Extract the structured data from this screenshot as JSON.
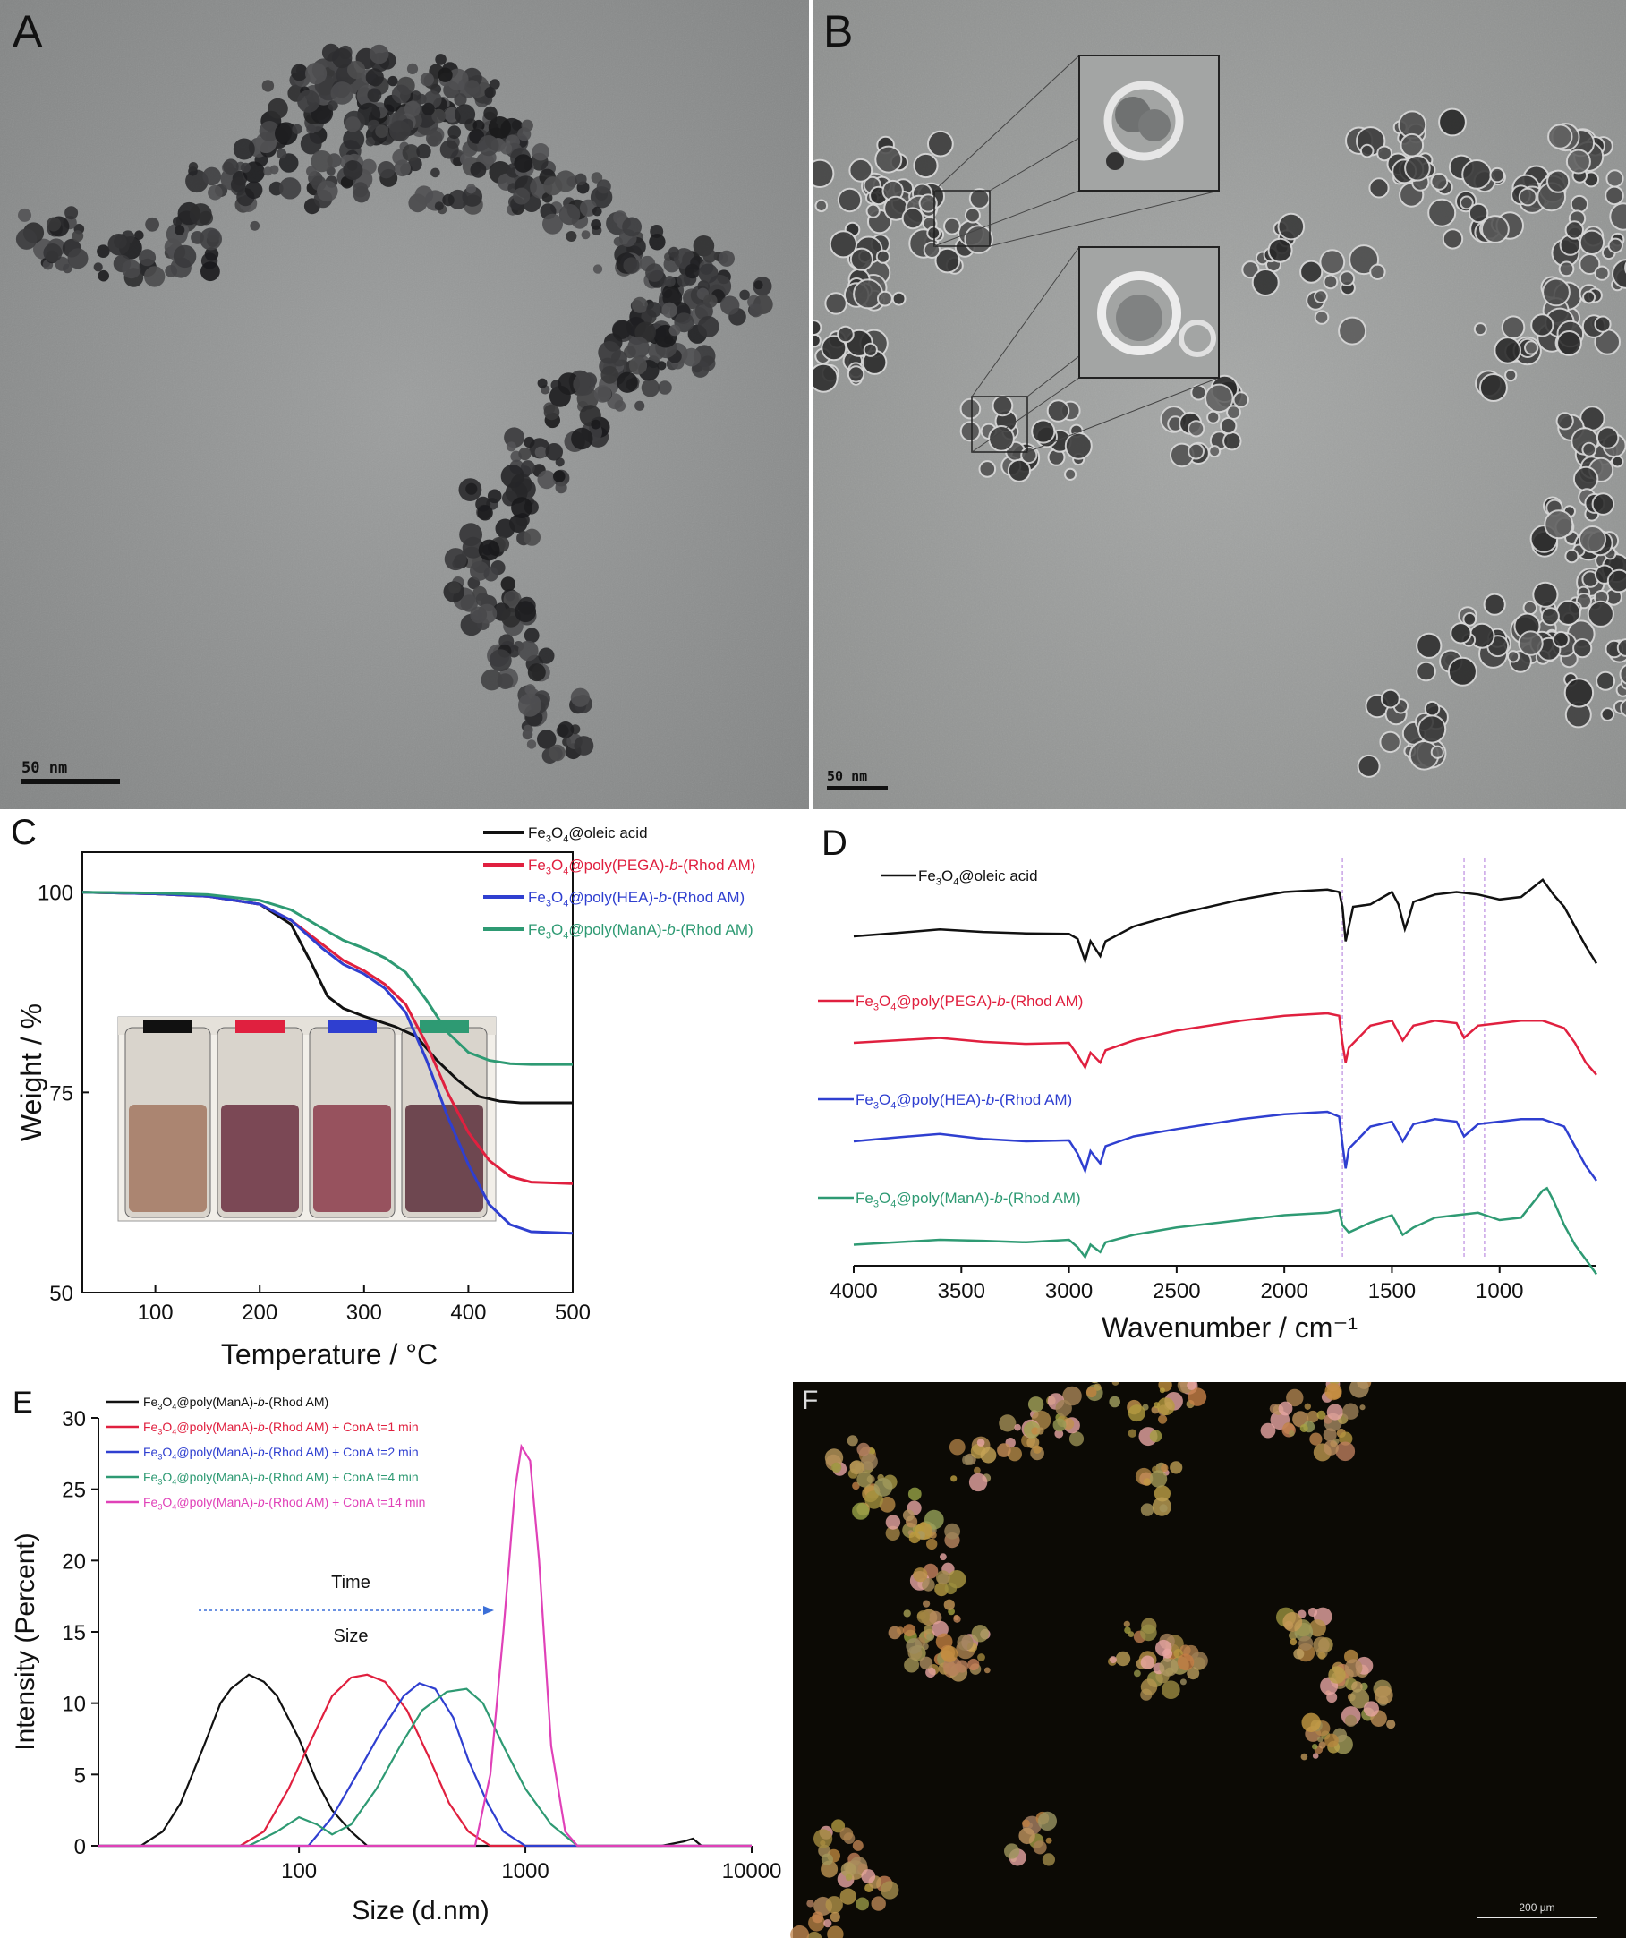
{
  "panels": {
    "a": {
      "label": "A",
      "scalebar": "50 nm"
    },
    "b": {
      "label": "B",
      "scalebar": "50 nm"
    },
    "c": {
      "label": "C"
    },
    "d": {
      "label": "D"
    },
    "e": {
      "label": "E"
    },
    "f": {
      "label": "F",
      "scalebar": "200 µm"
    }
  },
  "colors": {
    "black": "#111111",
    "red": "#e0203f",
    "blue": "#2f3fd0",
    "green": "#2e9a73",
    "magenta": "#e041b8"
  },
  "chart_data": [
    {
      "id": "C",
      "type": "line",
      "xlabel": "Temperature / °C",
      "ylabel": "Weight / %",
      "xlim": [
        30,
        500
      ],
      "ylim": [
        50,
        105
      ],
      "xticks": [
        100,
        200,
        300,
        400,
        500
      ],
      "yticks": [
        50,
        75,
        100
      ],
      "legend_position": "top-right",
      "series": [
        {
          "name": "Fe3O4@oleic acid",
          "color": "#111111",
          "x": [
            30,
            100,
            150,
            200,
            230,
            250,
            265,
            280,
            300,
            330,
            350,
            370,
            390,
            410,
            430,
            450,
            500
          ],
          "y": [
            100,
            99.8,
            99.5,
            98.5,
            96,
            91,
            87,
            85.5,
            84.5,
            83.2,
            82,
            79,
            76.5,
            74.5,
            73.9,
            73.7,
            73.7
          ]
        },
        {
          "name": "Fe3O4@poly(PEGA)-b-(Rhod AM)",
          "color": "#e0203f",
          "x": [
            30,
            100,
            150,
            200,
            230,
            260,
            280,
            300,
            320,
            340,
            360,
            380,
            400,
            420,
            440,
            460,
            500
          ],
          "y": [
            100,
            99.8,
            99.5,
            98.5,
            96.5,
            93.5,
            91.5,
            90.2,
            88.5,
            86,
            81,
            75,
            70,
            66.5,
            64.5,
            63.8,
            63.6
          ]
        },
        {
          "name": "Fe3O4@poly(HEA)-b-(Rhod AM)",
          "color": "#2f3fd0",
          "x": [
            30,
            100,
            150,
            200,
            230,
            260,
            280,
            300,
            320,
            340,
            360,
            380,
            400,
            420,
            440,
            460,
            500
          ],
          "y": [
            100,
            99.8,
            99.5,
            98.5,
            96.5,
            93,
            91,
            89.8,
            88,
            85,
            79,
            72,
            66,
            61,
            58.5,
            57.6,
            57.4
          ]
        },
        {
          "name": "Fe3O4@poly(ManA)-b-(Rhod AM)",
          "color": "#2e9a73",
          "x": [
            30,
            100,
            150,
            200,
            230,
            260,
            280,
            300,
            320,
            340,
            360,
            380,
            400,
            420,
            440,
            460,
            500
          ],
          "y": [
            100,
            99.9,
            99.7,
            99,
            97.8,
            95.5,
            94,
            93,
            91.8,
            90,
            86.5,
            82.5,
            80,
            79,
            78.6,
            78.5,
            78.5
          ]
        }
      ],
      "inset": {
        "vial_label_colors": [
          "#111111",
          "#e0203f",
          "#2f3fd0",
          "#2e9a73"
        ]
      }
    },
    {
      "id": "D",
      "type": "line",
      "xlabel": "Wavenumber / cm⁻¹",
      "ylabel": "",
      "xlim": [
        4000,
        550
      ],
      "xticks": [
        4000,
        3500,
        3000,
        2500,
        2000,
        1500,
        1000
      ],
      "marker_lines": [
        1730,
        1165,
        1070
      ],
      "series": [
        {
          "name": "Fe3O4@oleic acid",
          "color": "#111111",
          "x": [
            4000,
            3800,
            3600,
            3400,
            3200,
            3000,
            2960,
            2925,
            2900,
            2855,
            2830,
            2700,
            2500,
            2200,
            2000,
            1800,
            1745,
            1730,
            1715,
            1700,
            1680,
            1600,
            1500,
            1470,
            1440,
            1420,
            1400,
            1300,
            1200,
            1100,
            1000,
            900,
            800,
            750,
            700,
            600,
            550
          ],
          "y": [
            0.4,
            0.33,
            0.26,
            0.31,
            0.34,
            0.35,
            0.45,
            0.9,
            0.5,
            0.8,
            0.5,
            0.2,
            -0.05,
            -0.35,
            -0.5,
            -0.55,
            -0.5,
            -0.2,
            0.5,
            0.2,
            -0.2,
            -0.25,
            -0.5,
            -0.25,
            0.25,
            0.0,
            -0.3,
            -0.45,
            -0.5,
            -0.45,
            -0.35,
            -0.4,
            -0.75,
            -0.45,
            -0.2,
            0.6,
            0.95
          ]
        },
        {
          "name": "Fe3O4@poly(PEGA)-b-(Rhod AM)",
          "color": "#e0203f",
          "x": [
            4000,
            3800,
            3600,
            3400,
            3200,
            3000,
            2960,
            2925,
            2900,
            2855,
            2830,
            2700,
            2500,
            2200,
            2000,
            1800,
            1745,
            1730,
            1715,
            1700,
            1600,
            1500,
            1450,
            1400,
            1300,
            1200,
            1165,
            1100,
            1000,
            900,
            800,
            700,
            650,
            600,
            550
          ],
          "y": [
            0.2,
            0.15,
            0.1,
            0.18,
            0.22,
            0.2,
            0.45,
            0.7,
            0.4,
            0.6,
            0.35,
            0.15,
            -0.05,
            -0.25,
            -0.35,
            -0.4,
            -0.35,
            0.2,
            0.6,
            0.3,
            -0.15,
            -0.25,
            0.15,
            -0.15,
            -0.25,
            -0.2,
            0.1,
            -0.15,
            -0.2,
            -0.25,
            -0.25,
            -0.1,
            0.2,
            0.6,
            0.85
          ]
        },
        {
          "name": "Fe3O4@poly(HEA)-b-(Rhod AM)",
          "color": "#2f3fd0",
          "x": [
            4000,
            3800,
            3600,
            3400,
            3200,
            3000,
            2960,
            2925,
            2900,
            2855,
            2830,
            2700,
            2500,
            2200,
            2000,
            1800,
            1745,
            1730,
            1715,
            1700,
            1600,
            1500,
            1450,
            1400,
            1300,
            1200,
            1165,
            1100,
            1000,
            900,
            800,
            700,
            650,
            600,
            550
          ],
          "y": [
            0.2,
            0.12,
            0.05,
            0.15,
            0.2,
            0.18,
            0.45,
            0.8,
            0.4,
            0.65,
            0.3,
            0.1,
            -0.05,
            -0.25,
            -0.35,
            -0.4,
            -0.3,
            0.25,
            0.75,
            0.35,
            -0.1,
            -0.2,
            0.2,
            -0.15,
            -0.25,
            -0.2,
            0.1,
            -0.15,
            -0.2,
            -0.25,
            -0.25,
            -0.1,
            0.3,
            0.7,
            1.0
          ]
        },
        {
          "name": "Fe3O4@poly(ManA)-b-(Rhod AM)",
          "color": "#2e9a73",
          "x": [
            4000,
            3800,
            3600,
            3400,
            3200,
            3000,
            2960,
            2925,
            2900,
            2855,
            2830,
            2700,
            2500,
            2200,
            2000,
            1800,
            1745,
            1730,
            1700,
            1600,
            1500,
            1450,
            1400,
            1300,
            1200,
            1100,
            1000,
            900,
            800,
            780,
            750,
            700,
            650,
            600,
            550
          ],
          "y": [
            0.3,
            0.25,
            0.2,
            0.22,
            0.25,
            0.2,
            0.35,
            0.55,
            0.3,
            0.45,
            0.25,
            0.1,
            -0.05,
            -0.2,
            -0.3,
            -0.35,
            -0.4,
            -0.1,
            0.05,
            -0.15,
            -0.3,
            0.1,
            -0.05,
            -0.25,
            -0.3,
            -0.35,
            -0.2,
            -0.25,
            -0.8,
            -0.85,
            -0.6,
            -0.1,
            0.3,
            0.6,
            0.9
          ]
        }
      ]
    },
    {
      "id": "E",
      "type": "line",
      "xlabel": "Size (d.nm)",
      "ylabel": "Intensity (Percent)",
      "xscale": "log",
      "xlim": [
        13,
        10000
      ],
      "ylim": [
        0,
        30
      ],
      "xticks": [
        100,
        1000,
        10000
      ],
      "yticks": [
        0,
        5,
        10,
        15,
        20,
        25,
        30
      ],
      "legend_position": "top-left",
      "annotations": [
        "Time",
        "Size"
      ],
      "series": [
        {
          "name": "Fe3O4@poly(ManA)-b-(Rhod AM)",
          "color": "#111111",
          "x": [
            13,
            20,
            25,
            30,
            38,
            45,
            50,
            60,
            70,
            80,
            100,
            120,
            140,
            170,
            200,
            300,
            1000,
            4000,
            5000,
            5500,
            6000,
            10000
          ],
          "y": [
            0,
            0,
            1,
            3,
            7,
            10,
            11,
            12,
            11.5,
            10.5,
            7.5,
            4.5,
            2.5,
            1,
            0,
            0,
            0,
            0,
            0.3,
            0.5,
            0,
            0
          ]
        },
        {
          "name": "Fe3O4@poly(ManA)-b-(Rhod AM) + ConA t=1 min",
          "color": "#e0203f",
          "x": [
            13,
            55,
            70,
            90,
            110,
            140,
            170,
            200,
            240,
            300,
            380,
            460,
            560,
            700,
            10000
          ],
          "y": [
            0,
            0,
            1,
            4,
            7,
            10.5,
            11.8,
            12,
            11.5,
            9.5,
            6,
            3,
            1,
            0,
            0
          ]
        },
        {
          "name": "Fe3O4@poly(ManA)-b-(Rhod AM) + ConA t=2 min",
          "color": "#2f3fd0",
          "x": [
            13,
            110,
            140,
            180,
            230,
            290,
            340,
            400,
            480,
            560,
            680,
            800,
            1000,
            10000
          ],
          "y": [
            0,
            0,
            2,
            5,
            8,
            10.5,
            11.4,
            11,
            9,
            6,
            3,
            1,
            0,
            0
          ]
        },
        {
          "name": "Fe3O4@poly(ManA)-b-(Rhod AM) + ConA t=4 min",
          "color": "#2e9a73",
          "x": [
            13,
            60,
            80,
            100,
            120,
            140,
            170,
            220,
            280,
            350,
            450,
            550,
            650,
            800,
            1000,
            1300,
            1700,
            10000
          ],
          "y": [
            0,
            0,
            1,
            2,
            1.5,
            0.8,
            1.5,
            4,
            7,
            9.5,
            10.8,
            11,
            10,
            7,
            4,
            1.5,
            0,
            0
          ]
        },
        {
          "name": "Fe3O4@poly(ManA)-b-(Rhod AM) + ConA t=14 min",
          "color": "#e041b8",
          "x": [
            13,
            600,
            700,
            800,
            900,
            960,
            1050,
            1150,
            1300,
            1500,
            1700,
            10000
          ],
          "y": [
            0,
            0,
            5,
            15,
            25,
            28,
            27,
            20,
            7,
            1,
            0,
            0
          ]
        }
      ]
    }
  ]
}
